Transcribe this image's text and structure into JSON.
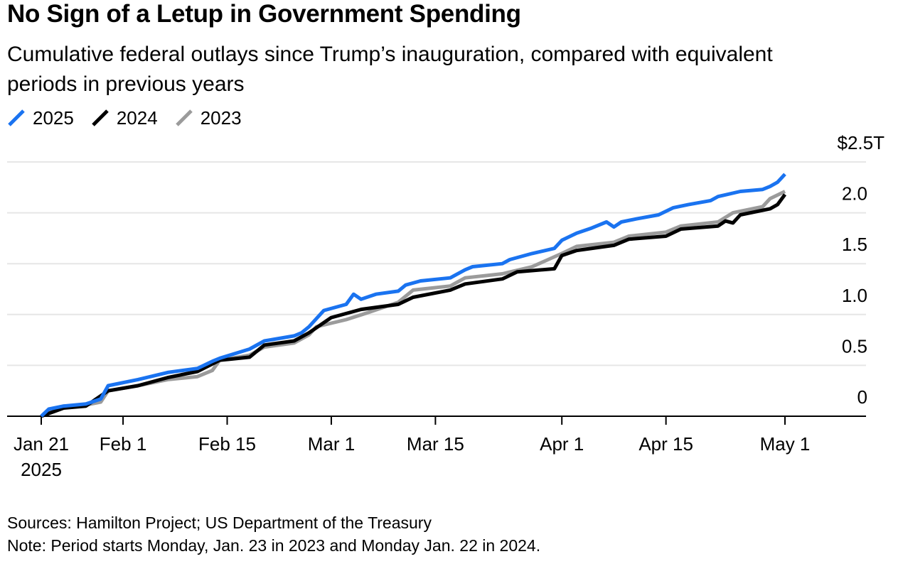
{
  "header": {
    "title": "No Sign of a Letup in Government Spending",
    "subtitle": "Cumulative federal outlays since Trump’s inauguration, compared with equivalent periods in previous years"
  },
  "footer": {
    "sources": "Sources: Hamilton Project; US Department of the Treasury",
    "note": "Note: Period starts Monday, Jan. 23 in 2023 and Monday Jan. 22 in 2024."
  },
  "chart_data": {
    "type": "line",
    "title": "No Sign of a Letup in Government Spending",
    "xlabel": "",
    "ylabel": "",
    "y_unit_label": "$2.5T",
    "ylim": [
      0,
      2.5
    ],
    "x_range": [
      "2025-01-21",
      "2025-05-01"
    ],
    "grid": true,
    "legend_position": "top-left",
    "y_ticks": [
      {
        "value": 0,
        "label": "0"
      },
      {
        "value": 0.5,
        "label": "0.5"
      },
      {
        "value": 1.0,
        "label": "1.0"
      },
      {
        "value": 1.5,
        "label": "1.5"
      },
      {
        "value": 2.0,
        "label": "2.0"
      }
    ],
    "x_ticks": [
      {
        "date": "2025-01-21",
        "label": "Jan 21",
        "sublabel": "2025"
      },
      {
        "date": "2025-02-01",
        "label": "Feb 1"
      },
      {
        "date": "2025-02-15",
        "label": "Feb 15"
      },
      {
        "date": "2025-03-01",
        "label": "Mar 1"
      },
      {
        "date": "2025-03-15",
        "label": "Mar 15"
      },
      {
        "date": "2025-04-01",
        "label": "Apr 1"
      },
      {
        "date": "2025-04-15",
        "label": "Apr 15"
      },
      {
        "date": "2025-05-01",
        "label": "May 1"
      }
    ],
    "series": [
      {
        "name": "2023",
        "color": "#9b9b9b",
        "points": [
          [
            "2025-01-21",
            0.0
          ],
          [
            "2025-01-24",
            0.1
          ],
          [
            "2025-01-27",
            0.11
          ],
          [
            "2025-01-29",
            0.14
          ],
          [
            "2025-01-30",
            0.25
          ],
          [
            "2025-02-03",
            0.3
          ],
          [
            "2025-02-07",
            0.36
          ],
          [
            "2025-02-11",
            0.39
          ],
          [
            "2025-02-13",
            0.45
          ],
          [
            "2025-02-14",
            0.55
          ],
          [
            "2025-02-18",
            0.6
          ],
          [
            "2025-02-20",
            0.68
          ],
          [
            "2025-02-24",
            0.72
          ],
          [
            "2025-02-26",
            0.8
          ],
          [
            "2025-02-27",
            0.88
          ],
          [
            "2025-03-03",
            0.95
          ],
          [
            "2025-03-06",
            1.02
          ],
          [
            "2025-03-10",
            1.12
          ],
          [
            "2025-03-12",
            1.24
          ],
          [
            "2025-03-17",
            1.28
          ],
          [
            "2025-03-19",
            1.36
          ],
          [
            "2025-03-24",
            1.4
          ],
          [
            "2025-03-28",
            1.47
          ],
          [
            "2025-04-01",
            1.6
          ],
          [
            "2025-04-03",
            1.67
          ],
          [
            "2025-04-08",
            1.71
          ],
          [
            "2025-04-10",
            1.77
          ],
          [
            "2025-04-15",
            1.81
          ],
          [
            "2025-04-17",
            1.87
          ],
          [
            "2025-04-22",
            1.91
          ],
          [
            "2025-04-24",
            2.0
          ],
          [
            "2025-04-28",
            2.06
          ],
          [
            "2025-04-29",
            2.14
          ],
          [
            "2025-05-01",
            2.21
          ]
        ]
      },
      {
        "name": "2024",
        "color": "#000000",
        "points": [
          [
            "2025-01-21",
            0.0
          ],
          [
            "2025-01-24",
            0.08
          ],
          [
            "2025-01-27",
            0.1
          ],
          [
            "2025-01-30",
            0.25
          ],
          [
            "2025-02-03",
            0.3
          ],
          [
            "2025-02-07",
            0.38
          ],
          [
            "2025-02-11",
            0.44
          ],
          [
            "2025-02-14",
            0.55
          ],
          [
            "2025-02-18",
            0.58
          ],
          [
            "2025-02-20",
            0.7
          ],
          [
            "2025-02-24",
            0.74
          ],
          [
            "2025-02-26",
            0.82
          ],
          [
            "2025-03-01",
            0.97
          ],
          [
            "2025-03-05",
            1.05
          ],
          [
            "2025-03-10",
            1.1
          ],
          [
            "2025-03-12",
            1.17
          ],
          [
            "2025-03-17",
            1.24
          ],
          [
            "2025-03-19",
            1.3
          ],
          [
            "2025-03-24",
            1.35
          ],
          [
            "2025-03-26",
            1.42
          ],
          [
            "2025-03-31",
            1.45
          ],
          [
            "2025-04-01",
            1.58
          ],
          [
            "2025-04-03",
            1.63
          ],
          [
            "2025-04-08",
            1.68
          ],
          [
            "2025-04-10",
            1.74
          ],
          [
            "2025-04-15",
            1.77
          ],
          [
            "2025-04-17",
            1.84
          ],
          [
            "2025-04-22",
            1.87
          ],
          [
            "2025-04-23",
            1.92
          ],
          [
            "2025-04-24",
            1.9
          ],
          [
            "2025-04-25",
            1.98
          ],
          [
            "2025-04-29",
            2.04
          ],
          [
            "2025-04-30",
            2.08
          ],
          [
            "2025-05-01",
            2.18
          ]
        ]
      },
      {
        "name": "2025",
        "color": "#1a73f0",
        "points": [
          [
            "2025-01-21",
            0.0
          ],
          [
            "2025-01-22",
            0.07
          ],
          [
            "2025-01-24",
            0.1
          ],
          [
            "2025-01-27",
            0.12
          ],
          [
            "2025-01-29",
            0.17
          ],
          [
            "2025-01-30",
            0.3
          ],
          [
            "2025-02-03",
            0.36
          ],
          [
            "2025-02-07",
            0.43
          ],
          [
            "2025-02-11",
            0.47
          ],
          [
            "2025-02-13",
            0.54
          ],
          [
            "2025-02-14",
            0.57
          ],
          [
            "2025-02-18",
            0.66
          ],
          [
            "2025-02-20",
            0.74
          ],
          [
            "2025-02-24",
            0.79
          ],
          [
            "2025-02-25",
            0.82
          ],
          [
            "2025-02-26",
            0.88
          ],
          [
            "2025-02-28",
            1.04
          ],
          [
            "2025-03-03",
            1.1
          ],
          [
            "2025-03-04",
            1.2
          ],
          [
            "2025-03-05",
            1.15
          ],
          [
            "2025-03-07",
            1.2
          ],
          [
            "2025-03-10",
            1.23
          ],
          [
            "2025-03-11",
            1.29
          ],
          [
            "2025-03-13",
            1.33
          ],
          [
            "2025-03-17",
            1.36
          ],
          [
            "2025-03-19",
            1.44
          ],
          [
            "2025-03-20",
            1.47
          ],
          [
            "2025-03-24",
            1.5
          ],
          [
            "2025-03-25",
            1.54
          ],
          [
            "2025-03-28",
            1.6
          ],
          [
            "2025-03-31",
            1.65
          ],
          [
            "2025-04-01",
            1.73
          ],
          [
            "2025-04-03",
            1.8
          ],
          [
            "2025-04-05",
            1.85
          ],
          [
            "2025-04-07",
            1.91
          ],
          [
            "2025-04-08",
            1.86
          ],
          [
            "2025-04-09",
            1.91
          ],
          [
            "2025-04-11",
            1.94
          ],
          [
            "2025-04-14",
            1.98
          ],
          [
            "2025-04-16",
            2.05
          ],
          [
            "2025-04-18",
            2.08
          ],
          [
            "2025-04-21",
            2.12
          ],
          [
            "2025-04-22",
            2.16
          ],
          [
            "2025-04-25",
            2.21
          ],
          [
            "2025-04-28",
            2.23
          ],
          [
            "2025-04-29",
            2.26
          ],
          [
            "2025-04-30",
            2.3
          ],
          [
            "2025-05-01",
            2.38
          ]
        ]
      }
    ]
  }
}
